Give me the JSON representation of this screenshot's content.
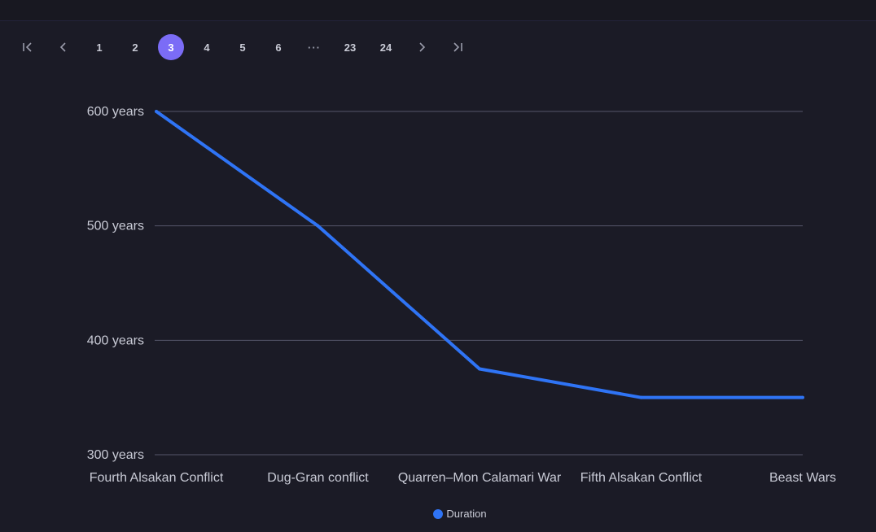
{
  "pagination": {
    "first_icon": "first-page-icon",
    "prev_icon": "chevron-left-icon",
    "next_icon": "chevron-right-icon",
    "last_icon": "last-page-icon",
    "pages": [
      "1",
      "2",
      "3",
      "4",
      "5",
      "6",
      "···",
      "23",
      "24"
    ],
    "current": "3"
  },
  "colors": {
    "background": "#1b1b26",
    "accent": "#7b6cf6",
    "series": "#2f74f5",
    "grid": "#55566a",
    "text": "#c9cbd6"
  },
  "chart_data": {
    "type": "line",
    "categories": [
      "Fourth Alsakan Conflict",
      "Dug-Gran conflict",
      "Quarren–Mon Calamari War",
      "Fifth Alsakan Conflict",
      "Beast Wars"
    ],
    "series": [
      {
        "name": "Duration",
        "values": [
          600,
          500,
          375,
          350,
          350
        ]
      }
    ],
    "yticks": [
      300,
      400,
      500,
      600
    ],
    "ytick_labels": [
      "300 years",
      "400 years",
      "500 years",
      "600 years"
    ],
    "ylim": [
      300,
      600
    ],
    "grid": true,
    "legend_position": "bottom"
  }
}
